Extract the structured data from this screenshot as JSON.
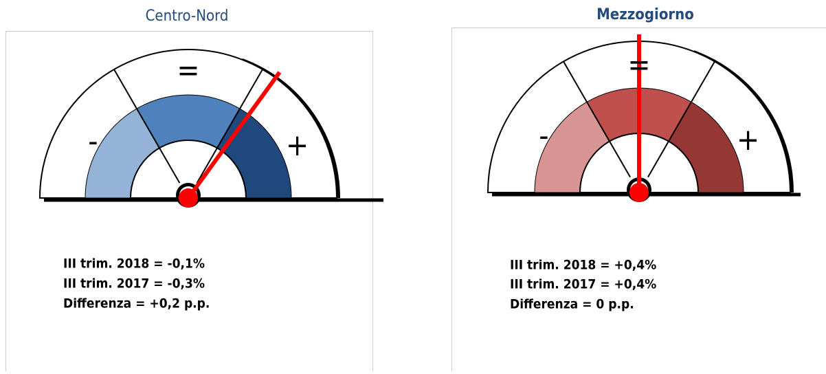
{
  "panels": [
    {
      "title": "Centro-Nord",
      "minus": "-",
      "equal": "=",
      "plus": "+",
      "lines": [
        "III trim. 2018 = -0,1%",
        "III trim. 2017 = -0,3%",
        "Differenza = +0,2 p.p."
      ]
    },
    {
      "title": "Mezzogiorno",
      "minus": "-",
      "equal": "=",
      "plus": "+",
      "lines": [
        "III trim. 2018 = +0,4%",
        "III trim. 2017 = +0,4%",
        "Differenza = 0 p.p."
      ]
    }
  ]
}
